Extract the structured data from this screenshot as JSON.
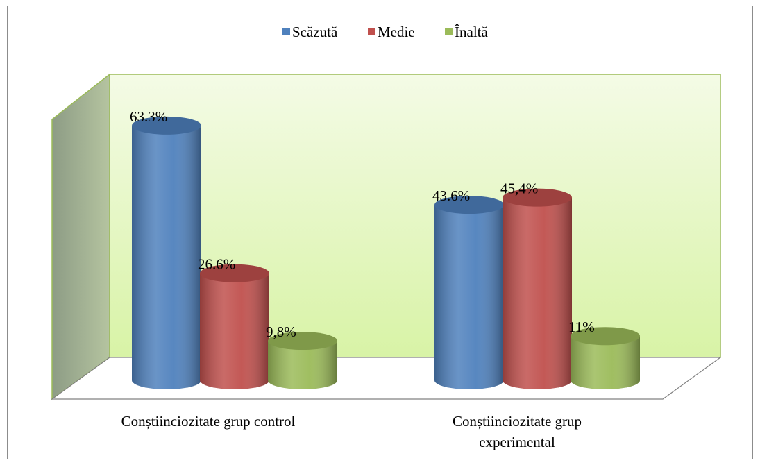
{
  "chart_data": {
    "type": "bar3d",
    "categories": [
      "Conștiinciozitate grup control",
      "Conștiinciozitate grup experimental"
    ],
    "series": [
      {
        "name": "Scăzută",
        "color": "#4f81bd",
        "values": [
          63.3,
          43.6
        ],
        "value_labels": [
          "63.3%",
          "43.6%"
        ]
      },
      {
        "name": "Medie",
        "color": "#c0504d",
        "values": [
          26.6,
          45.4
        ],
        "value_labels": [
          "26.6%",
          "45,4%"
        ]
      },
      {
        "name": "Înaltă",
        "color": "#9bbb59",
        "values": [
          9.8,
          11
        ],
        "value_labels": [
          "9,8%",
          "11%"
        ]
      }
    ],
    "legend": "top"
  }
}
